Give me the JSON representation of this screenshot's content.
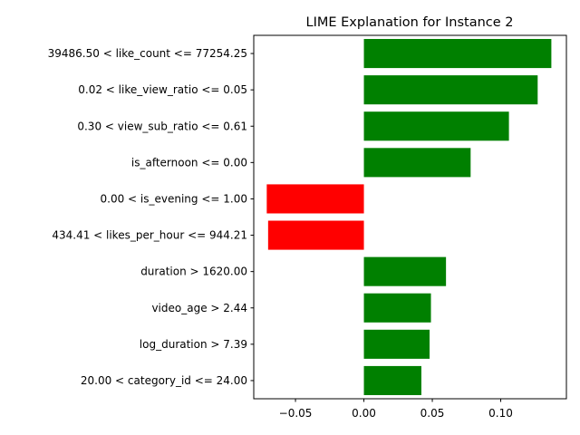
{
  "chart_data": {
    "type": "bar",
    "orientation": "horizontal",
    "title": "LIME Explanation for Instance 2",
    "xlabel": "",
    "ylabel": "",
    "categories": [
      "39486.50 < like_count <= 77254.25",
      "0.02 < like_view_ratio <= 0.05",
      "0.30 < view_sub_ratio <= 0.61",
      "is_afternoon <= 0.00",
      "0.00 < is_evening <= 1.00",
      "434.41 < likes_per_hour <= 944.21",
      "duration > 1620.00",
      "video_age > 2.44",
      "log_duration > 7.39",
      "20.00 < category_id <= 24.00"
    ],
    "values": [
      0.137,
      0.127,
      0.106,
      0.078,
      -0.071,
      -0.07,
      0.06,
      0.049,
      0.048,
      0.042
    ],
    "xlim": [
      -0.0805,
      0.148
    ],
    "xticks": [
      -0.05,
      0.0,
      0.05,
      0.1
    ],
    "xtick_labels": [
      "−0.05",
      "0.00",
      "0.05",
      "0.10"
    ],
    "grid": false,
    "colors": {
      "positive": "#008000",
      "negative": "#ff0000",
      "axis": "#000000"
    }
  }
}
